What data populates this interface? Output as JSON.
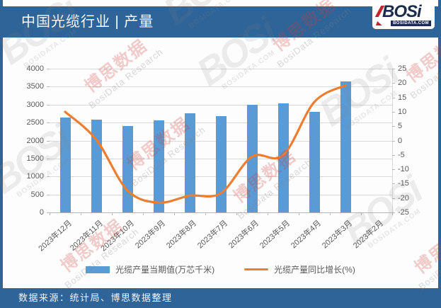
{
  "header": {
    "title": "中国光缆行业 | 产量",
    "logo": {
      "brand": "BOSi",
      "domain": "BOSIDATA.COM"
    }
  },
  "chart_data": {
    "type": "combo-bar-line",
    "categories": [
      "2023年12月",
      "2023年11月",
      "2023年10月",
      "2023年9月",
      "2023年8月",
      "2023年7月",
      "2023年6月",
      "2023年5月",
      "2023年4月",
      "2023年3月",
      "2023年2月"
    ],
    "series": [
      {
        "name": "光缆产量当期值(万芯千米)",
        "type": "bar",
        "color": "#5b9bd5",
        "values": [
          2650,
          2590,
          2400,
          2570,
          2760,
          2670,
          3000,
          3030,
          2800,
          3650,
          null
        ]
      },
      {
        "name": "光缆产量同比增长(%)",
        "type": "line",
        "color": "#ed7d31",
        "values": [
          10.0,
          0.3,
          -17.3,
          -21.6,
          -19.2,
          -18.3,
          -5.6,
          -5.1,
          13.4,
          19.2,
          null
        ]
      }
    ],
    "left_axis": {
      "min": 0,
      "max": 4000,
      "step": 500,
      "ticks": [
        "4000",
        "3500",
        "3000",
        "2500",
        "2000",
        "1500",
        "1000",
        "500",
        "0"
      ]
    },
    "right_axis": {
      "min": -25,
      "max": 25,
      "step": 5,
      "ticks": [
        "25",
        "20",
        "15",
        "10",
        "5",
        "0",
        "-5",
        "-10",
        "-15",
        "-20",
        "-25"
      ]
    },
    "grid": true,
    "legend_position": "bottom"
  },
  "footer": {
    "source": "数据来源：统计局、博思数据整理"
  },
  "watermark": {
    "brand": "BOSi",
    "domain": "BOSIDATA.COM",
    "cn": "博思数据",
    "en": "BosiData Research"
  },
  "colors": {
    "theme_blue": "#2f6498",
    "bar": "#5b9bd5",
    "line": "#ed7d31",
    "axis_text": "#595959",
    "grid": "#d9d9d9"
  }
}
